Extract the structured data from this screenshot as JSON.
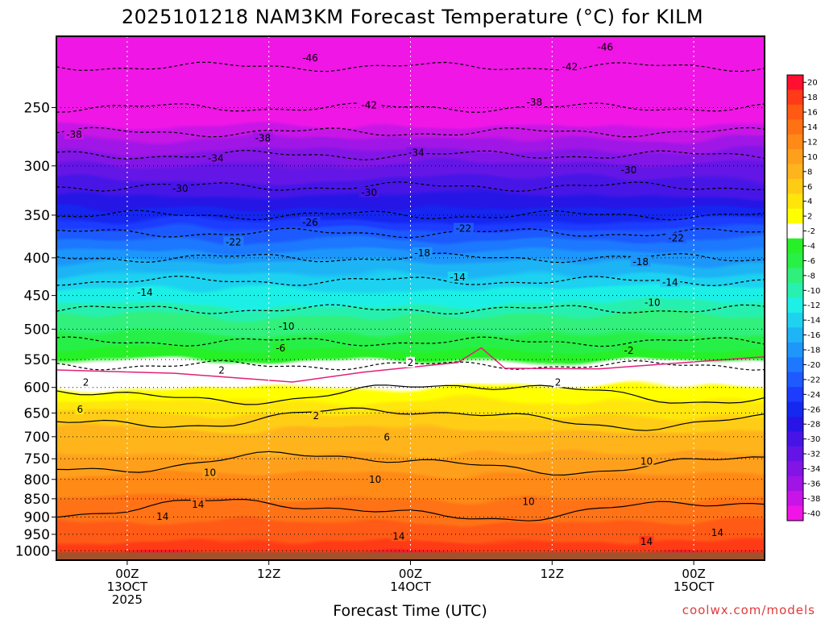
{
  "chart_data": {
    "type": "heatmap",
    "title": "2025101218 NAM3KM Forecast Temperature (°C) for KILM",
    "xlabel": "Forecast Time (UTC)",
    "ylabel": "",
    "credit": "coolwx.com/models",
    "yaxis": {
      "scale": "log-pressure",
      "range_hpa": [
        200,
        1030
      ],
      "ticks": [
        "250",
        "300",
        "350",
        "400",
        "450",
        "500",
        "550",
        "600",
        "650",
        "700",
        "750",
        "800",
        "850",
        "900",
        "950",
        "1000"
      ]
    },
    "xaxis": {
      "range_hours_from_start": [
        0,
        60
      ],
      "ticks": [
        {
          "hour": 6,
          "lines": [
            "00Z",
            "13OCT",
            "2025"
          ]
        },
        {
          "hour": 18,
          "lines": [
            "12Z"
          ]
        },
        {
          "hour": 30,
          "lines": [
            "00Z",
            "14OCT"
          ]
        },
        {
          "hour": 42,
          "lines": [
            "12Z"
          ]
        },
        {
          "hour": 54,
          "lines": [
            "00Z",
            "15OCT"
          ]
        }
      ]
    },
    "colorbar": {
      "labels": [
        "20",
        "18",
        "16",
        "14",
        "12",
        "10",
        "8",
        "6",
        "4",
        "2",
        "-2",
        "-4",
        "-6",
        "-8",
        "-10",
        "-12",
        "-14",
        "-16",
        "-18",
        "-20",
        "-22",
        "-24",
        "-26",
        "-28",
        "-30",
        "-32",
        "-34",
        "-36",
        "-38",
        "-40"
      ],
      "colors": [
        "#ff1030",
        "#ff3a18",
        "#ff5a14",
        "#ff7214",
        "#ff8a18",
        "#ffa01c",
        "#ffb41e",
        "#ffcc14",
        "#ffe60a",
        "#ffff00",
        "#ffffff",
        "#28f028",
        "#28f046",
        "#30f07c",
        "#28f0b0",
        "#1ef0e6",
        "#1ed2f0",
        "#1eb4f5",
        "#1e96fa",
        "#1e78ff",
        "#1e5aff",
        "#1e3cff",
        "#1428f0",
        "#2814e6",
        "#4614e6",
        "#6414e6",
        "#8214e6",
        "#a014e6",
        "#c814e6",
        "#f014e6"
      ]
    },
    "profile_points": [
      {
        "pressure_hpa": 220,
        "temp_c": -46
      },
      {
        "pressure_hpa": 250,
        "temp_c": -42
      },
      {
        "pressure_hpa": 270,
        "temp_c": -38
      },
      {
        "pressure_hpa": 290,
        "temp_c": -34
      },
      {
        "pressure_hpa": 320,
        "temp_c": -30
      },
      {
        "pressure_hpa": 350,
        "temp_c": -26
      },
      {
        "pressure_hpa": 370,
        "temp_c": -22
      },
      {
        "pressure_hpa": 400,
        "temp_c": -18
      },
      {
        "pressure_hpa": 430,
        "temp_c": -14
      },
      {
        "pressure_hpa": 470,
        "temp_c": -10
      },
      {
        "pressure_hpa": 520,
        "temp_c": -6
      },
      {
        "pressure_hpa": 560,
        "temp_c": -2
      },
      {
        "pressure_hpa": 610,
        "temp_c": 2
      },
      {
        "pressure_hpa": 660,
        "temp_c": 6
      },
      {
        "pressure_hpa": 760,
        "temp_c": 10
      },
      {
        "pressure_hpa": 880,
        "temp_c": 14
      },
      {
        "pressure_hpa": 1000,
        "temp_c": 18
      }
    ],
    "contour_levels": [
      -46,
      -42,
      -38,
      -34,
      -30,
      -26,
      -22,
      -18,
      -14,
      -10,
      -6,
      -2,
      2,
      6,
      10,
      14
    ],
    "contour_labels": [
      {
        "text": "-46",
        "hour": 21.5,
        "pressure_hpa": 214
      },
      {
        "text": "-46",
        "hour": 46.5,
        "pressure_hpa": 207
      },
      {
        "text": "-42",
        "hour": 43.5,
        "pressure_hpa": 220
      },
      {
        "text": "-42",
        "hour": 26.5,
        "pressure_hpa": 248
      },
      {
        "text": "-38",
        "hour": 1.5,
        "pressure_hpa": 272
      },
      {
        "text": "-38",
        "hour": 17.5,
        "pressure_hpa": 275
      },
      {
        "text": "-38",
        "hour": 40.5,
        "pressure_hpa": 246
      },
      {
        "text": "-34",
        "hour": 13.5,
        "pressure_hpa": 293
      },
      {
        "text": "-34",
        "hour": 30.5,
        "pressure_hpa": 288
      },
      {
        "text": "-30",
        "hour": 10.5,
        "pressure_hpa": 322
      },
      {
        "text": "-30",
        "hour": 26.5,
        "pressure_hpa": 326
      },
      {
        "text": "-30",
        "hour": 48.5,
        "pressure_hpa": 304
      },
      {
        "text": "-26",
        "hour": 21.5,
        "pressure_hpa": 358
      },
      {
        "text": "-22",
        "hour": 15.0,
        "pressure_hpa": 381
      },
      {
        "text": "-22",
        "hour": 34.5,
        "pressure_hpa": 365
      },
      {
        "text": "-22",
        "hour": 52.5,
        "pressure_hpa": 376
      },
      {
        "text": "-18",
        "hour": 31.0,
        "pressure_hpa": 394
      },
      {
        "text": "-18",
        "hour": 49.5,
        "pressure_hpa": 405
      },
      {
        "text": "-14",
        "hour": 7.5,
        "pressure_hpa": 446
      },
      {
        "text": "-14",
        "hour": 34.0,
        "pressure_hpa": 425
      },
      {
        "text": "-14",
        "hour": 52.0,
        "pressure_hpa": 432
      },
      {
        "text": "-10",
        "hour": 19.5,
        "pressure_hpa": 496
      },
      {
        "text": "-10",
        "hour": 50.5,
        "pressure_hpa": 460
      },
      {
        "text": "-6",
        "hour": 19.0,
        "pressure_hpa": 531
      },
      {
        "text": "-2",
        "hour": 48.5,
        "pressure_hpa": 535
      },
      {
        "text": "2",
        "hour": 2.5,
        "pressure_hpa": 591
      },
      {
        "text": "2",
        "hour": 14.0,
        "pressure_hpa": 569
      },
      {
        "text": "2",
        "hour": 30.0,
        "pressure_hpa": 555
      },
      {
        "text": "2",
        "hour": 42.5,
        "pressure_hpa": 591
      },
      {
        "text": "2",
        "hour": 22.0,
        "pressure_hpa": 656
      },
      {
        "text": "6",
        "hour": 2.0,
        "pressure_hpa": 643
      },
      {
        "text": "6",
        "hour": 28.0,
        "pressure_hpa": 701
      },
      {
        "text": "10",
        "hour": 13.0,
        "pressure_hpa": 783
      },
      {
        "text": "10",
        "hour": 27.0,
        "pressure_hpa": 800
      },
      {
        "text": "10",
        "hour": 40.0,
        "pressure_hpa": 858
      },
      {
        "text": "10",
        "hour": 50.0,
        "pressure_hpa": 756
      },
      {
        "text": "14",
        "hour": 12.0,
        "pressure_hpa": 866
      },
      {
        "text": "14",
        "hour": 9.0,
        "pressure_hpa": 899
      },
      {
        "text": "14",
        "hour": 29.0,
        "pressure_hpa": 956
      },
      {
        "text": "14",
        "hour": 50.0,
        "pressure_hpa": 972
      },
      {
        "text": "14",
        "hour": 56.0,
        "pressure_hpa": 945
      }
    ],
    "freezing_line_hpa_by_hour": [
      {
        "hour": 0,
        "pressure_hpa": 568
      },
      {
        "hour": 10,
        "pressure_hpa": 574
      },
      {
        "hour": 20,
        "pressure_hpa": 590
      },
      {
        "hour": 26,
        "pressure_hpa": 572
      },
      {
        "hour": 34,
        "pressure_hpa": 555
      },
      {
        "hour": 36,
        "pressure_hpa": 530
      },
      {
        "hour": 38,
        "pressure_hpa": 565
      },
      {
        "hour": 46,
        "pressure_hpa": 566
      },
      {
        "hour": 60,
        "pressure_hpa": 545
      }
    ],
    "terrain_below_hpa": 1005
  }
}
